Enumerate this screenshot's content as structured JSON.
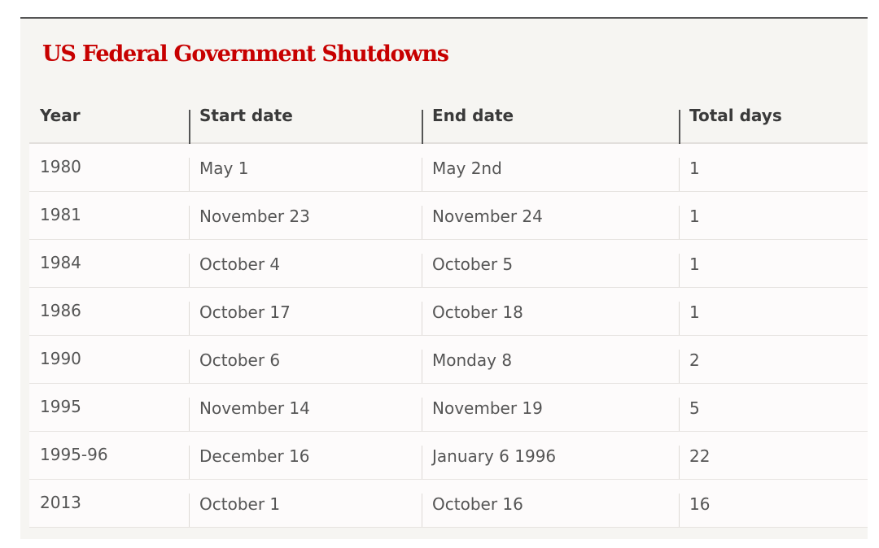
{
  "title": "US Federal Government Shutdowns",
  "colors": {
    "title": "#c70000",
    "panel_background": "#f6f5f2",
    "text": "#555555"
  },
  "chart_data": {
    "type": "table",
    "title": "US Federal Government Shutdowns",
    "columns": [
      "Year",
      "Start date",
      "End date",
      "Total days"
    ],
    "rows": [
      [
        "1980",
        "May 1",
        "May 2nd",
        "1"
      ],
      [
        "1981",
        "November 23",
        "November 24",
        "1"
      ],
      [
        "1984",
        "October 4",
        "October 5",
        "1"
      ],
      [
        "1986",
        "October 17",
        "October 18",
        "1"
      ],
      [
        "1990",
        "October 6",
        "Monday 8",
        "2"
      ],
      [
        "1995",
        "November 14",
        "November 19",
        "5"
      ],
      [
        "1995-96",
        "December 16",
        "January 6 1996",
        "22"
      ],
      [
        "2013",
        "October 1",
        "October 16",
        "16"
      ]
    ]
  }
}
